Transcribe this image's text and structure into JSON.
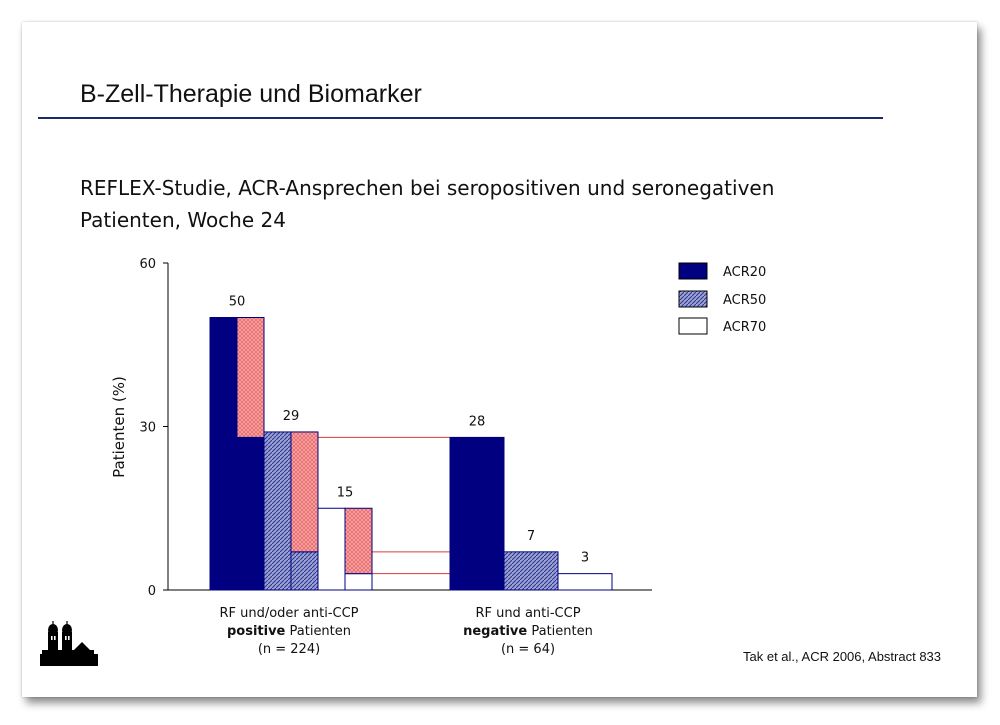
{
  "slide": {
    "title": "B-Zell-Therapie und Biomarker",
    "subtitle_line1": "REFLEX-Studie, ACR-Ansprechen bei seropositiven und seronegativen",
    "subtitle_line2": "Patienten, Woche 24",
    "citation": "Tak et al., ACR 2006, Abstract 833",
    "logo_icon": "church-towers-logo-icon"
  },
  "chart_data": {
    "type": "bar",
    "title": "",
    "ylabel": "Patienten (%)",
    "ylim": [
      0,
      60
    ],
    "yticks": [
      0,
      30,
      60
    ],
    "categories": [
      {
        "lines": [
          [
            {
              "t": "RF und/oder anti-CCP",
              "b": false
            }
          ],
          [
            {
              "t": "positive",
              "b": true
            },
            {
              "t": " Patienten",
              "b": false
            }
          ],
          [
            {
              "t": "(n = 224)",
              "b": false
            }
          ]
        ]
      },
      {
        "lines": [
          [
            {
              "t": "RF und anti-CCP",
              "b": false
            }
          ],
          [
            {
              "t": "negative",
              "b": true
            },
            {
              "t": " Patienten",
              "b": false
            }
          ],
          [
            {
              "t": "(n = 64)",
              "b": false
            }
          ]
        ]
      }
    ],
    "series": [
      {
        "name": "ACR20",
        "values": [
          50,
          28
        ],
        "fill": "#000080",
        "pattern": "solid"
      },
      {
        "name": "ACR50",
        "values": [
          29,
          7
        ],
        "fill": "#7f86c4",
        "pattern": "hatch"
      },
      {
        "name": "ACR70",
        "values": [
          15,
          3
        ],
        "fill": "#ffffff",
        "pattern": "none"
      }
    ],
    "difference": [
      22,
      22,
      12
    ],
    "difference_color": "#f08080",
    "legend_position": "top-right",
    "grid": false
  }
}
